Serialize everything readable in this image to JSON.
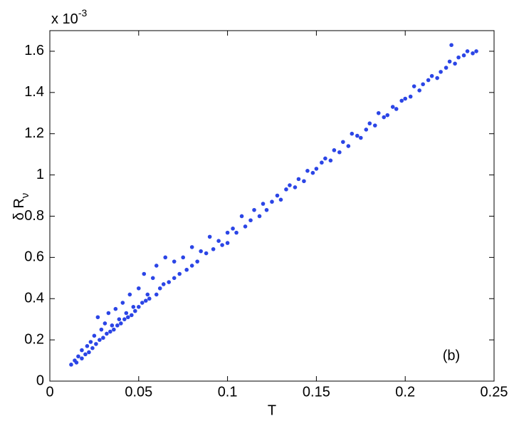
{
  "chart_data": {
    "type": "scatter",
    "xlabel": "T",
    "ylabel": "δ R",
    "ylabel_subscript": "ν",
    "y_scale_label": "x 10",
    "y_scale_exponent": "-3",
    "annotation": "(b)",
    "xlim": [
      0,
      0.25
    ],
    "xticks": [
      0,
      0.05,
      0.1,
      0.15,
      0.2,
      0.25
    ],
    "ylim": [
      0,
      1.7
    ],
    "yticks": [
      0,
      0.2,
      0.4,
      0.6,
      0.8,
      1,
      1.2,
      1.4,
      1.6
    ],
    "color": "#2b45e6",
    "x": [
      0.012,
      0.014,
      0.015,
      0.016,
      0.018,
      0.018,
      0.02,
      0.021,
      0.022,
      0.023,
      0.024,
      0.025,
      0.026,
      0.027,
      0.028,
      0.029,
      0.03,
      0.031,
      0.032,
      0.033,
      0.034,
      0.035,
      0.036,
      0.037,
      0.038,
      0.039,
      0.04,
      0.041,
      0.042,
      0.043,
      0.044,
      0.045,
      0.046,
      0.047,
      0.048,
      0.05,
      0.05,
      0.052,
      0.053,
      0.054,
      0.055,
      0.056,
      0.058,
      0.06,
      0.06,
      0.062,
      0.064,
      0.065,
      0.067,
      0.07,
      0.07,
      0.073,
      0.075,
      0.077,
      0.08,
      0.08,
      0.083,
      0.085,
      0.088,
      0.09,
      0.092,
      0.095,
      0.097,
      0.1,
      0.1,
      0.103,
      0.105,
      0.108,
      0.11,
      0.113,
      0.115,
      0.118,
      0.12,
      0.122,
      0.125,
      0.128,
      0.13,
      0.133,
      0.135,
      0.138,
      0.14,
      0.143,
      0.145,
      0.148,
      0.15,
      0.153,
      0.155,
      0.158,
      0.16,
      0.163,
      0.165,
      0.168,
      0.17,
      0.173,
      0.175,
      0.178,
      0.18,
      0.183,
      0.185,
      0.188,
      0.19,
      0.193,
      0.195,
      0.198,
      0.2,
      0.203,
      0.205,
      0.208,
      0.21,
      0.213,
      0.215,
      0.218,
      0.22,
      0.223,
      0.225,
      0.226,
      0.228,
      0.23,
      0.233,
      0.235,
      0.238,
      0.24
    ],
    "values": [
      0.08,
      0.1,
      0.09,
      0.12,
      0.11,
      0.15,
      0.13,
      0.17,
      0.14,
      0.19,
      0.16,
      0.22,
      0.18,
      0.31,
      0.2,
      0.25,
      0.21,
      0.28,
      0.23,
      0.33,
      0.24,
      0.27,
      0.25,
      0.35,
      0.27,
      0.3,
      0.28,
      0.38,
      0.3,
      0.33,
      0.31,
      0.42,
      0.32,
      0.36,
      0.34,
      0.45,
      0.36,
      0.38,
      0.52,
      0.39,
      0.42,
      0.4,
      0.5,
      0.42,
      0.56,
      0.45,
      0.47,
      0.6,
      0.48,
      0.5,
      0.58,
      0.52,
      0.6,
      0.54,
      0.56,
      0.65,
      0.58,
      0.63,
      0.62,
      0.7,
      0.64,
      0.68,
      0.66,
      0.72,
      0.67,
      0.74,
      0.72,
      0.8,
      0.75,
      0.78,
      0.83,
      0.8,
      0.86,
      0.83,
      0.87,
      0.9,
      0.88,
      0.93,
      0.95,
      0.94,
      0.98,
      0.97,
      1.02,
      1.01,
      1.03,
      1.06,
      1.08,
      1.07,
      1.12,
      1.11,
      1.16,
      1.14,
      1.2,
      1.19,
      1.18,
      1.22,
      1.25,
      1.24,
      1.3,
      1.28,
      1.29,
      1.33,
      1.32,
      1.36,
      1.37,
      1.38,
      1.43,
      1.41,
      1.44,
      1.46,
      1.48,
      1.47,
      1.5,
      1.52,
      1.55,
      1.63,
      1.54,
      1.57,
      1.58,
      1.6,
      1.59,
      1.6
    ]
  }
}
